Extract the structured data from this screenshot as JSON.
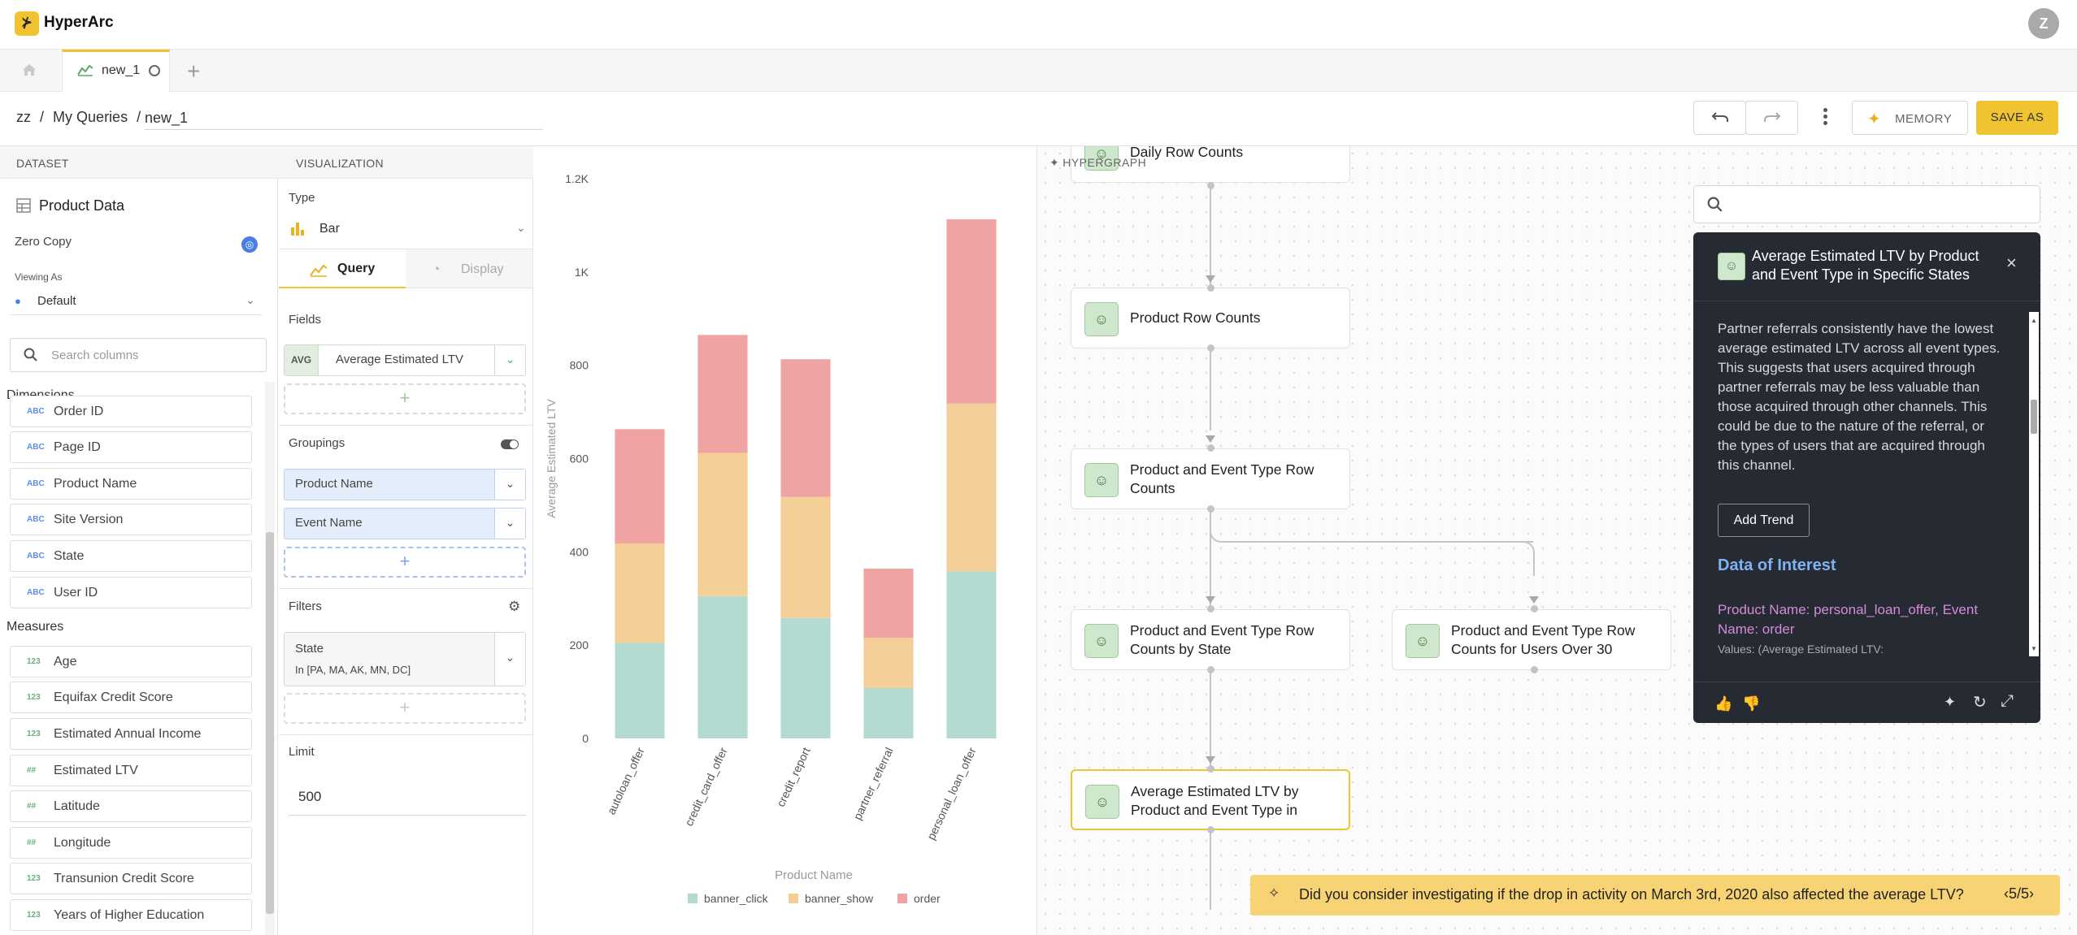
{
  "app": {
    "name": "HyperArc",
    "logo_glyph": "⊁",
    "user_initial": "Z"
  },
  "tabs": [
    {
      "label": "new_1"
    }
  ],
  "breadcrumb": {
    "root": "zz",
    "folder": "My Queries",
    "query_name": "new_1"
  },
  "toolbar": {
    "memory_label": "MEMORY",
    "save_as_label": "SAVE AS"
  },
  "dataset": {
    "header": "DATASET",
    "name": "Product Data",
    "zero_copy": "Zero Copy",
    "viewing_as_label": "Viewing As",
    "viewing_as_value": "Default",
    "search_placeholder": "Search columns",
    "dimensions_label": "Dimensions",
    "dimensions": [
      {
        "label": "Order ID",
        "type": "ABC"
      },
      {
        "label": "Page ID",
        "type": "ABC"
      },
      {
        "label": "Product Name",
        "type": "ABC"
      },
      {
        "label": "Site Version",
        "type": "ABC"
      },
      {
        "label": "State",
        "type": "ABC"
      },
      {
        "label": "User ID",
        "type": "ABC"
      }
    ],
    "measures_label": "Measures",
    "measures": [
      {
        "label": "Age",
        "type": "123"
      },
      {
        "label": "Equifax Credit Score",
        "type": "123"
      },
      {
        "label": "Estimated Annual Income",
        "type": "123"
      },
      {
        "label": "Estimated LTV",
        "type": "##"
      },
      {
        "label": "Latitude",
        "type": "##"
      },
      {
        "label": "Longitude",
        "type": "##"
      },
      {
        "label": "Transunion Credit Score",
        "type": "123"
      },
      {
        "label": "Years of Higher Education",
        "type": "123"
      }
    ]
  },
  "visualization": {
    "header": "VISUALIZATION",
    "type_label": "Type",
    "type_value": "Bar",
    "tab_query": "Query",
    "tab_display": "Display",
    "fields_label": "Fields",
    "field_agg": "AVG",
    "field_name": "Average Estimated LTV",
    "groupings_label": "Groupings",
    "groupings": [
      "Product Name",
      "Event Name"
    ],
    "filters_label": "Filters",
    "filter_name": "State",
    "filter_value": "In [PA, MA, AK, MN, DC]",
    "limit_label": "Limit",
    "limit_value": "500",
    "add_glyph": "+"
  },
  "chart_data": {
    "type": "bar",
    "stacked": true,
    "categories": [
      "autoloan_offer",
      "credit_card_offer",
      "credit_report",
      "partner_referral",
      "personal_loan_offer"
    ],
    "series": [
      {
        "name": "banner_click",
        "color": "#b3dbd1",
        "values": [
          205,
          305,
          258,
          108,
          358
        ]
      },
      {
        "name": "banner_show",
        "color": "#f5cf98",
        "values": [
          213,
          307,
          260,
          108,
          360
        ]
      },
      {
        "name": "order",
        "color": "#efa3a3",
        "values": [
          245,
          253,
          295,
          148,
          395
        ]
      }
    ],
    "xlabel": "Product Name",
    "ylabel": "Average Estimated LTV",
    "ylim": [
      0,
      1200
    ],
    "yticks": [
      {
        "value": 0,
        "label": "0"
      },
      {
        "value": 200,
        "label": "200"
      },
      {
        "value": 400,
        "label": "400"
      },
      {
        "value": 600,
        "label": "600"
      },
      {
        "value": 800,
        "label": "800"
      },
      {
        "value": 1000,
        "label": "1K"
      },
      {
        "value": 1200,
        "label": "1.2K"
      }
    ],
    "legend_position": "bottom"
  },
  "hypergraph": {
    "label": "HYPERGRAPH",
    "nodes": [
      {
        "label": "Daily Row Counts"
      },
      {
        "label": "Product Row Counts"
      },
      {
        "label": "Product and Event Type Row Counts"
      },
      {
        "label": "Product and Event Type Row Counts by State"
      },
      {
        "label": "Product and Event Type Row Counts for Users Over 30"
      },
      {
        "label": "Average Estimated LTV by Product and Event Type in"
      }
    ]
  },
  "insight_panel": {
    "search_placeholder": "",
    "title": "Average Estimated LTV by Product and Event Type in Specific States",
    "body": "Partner referrals consistently have the lowest average estimated LTV across all event types. This suggests that users acquired through partner referrals may be less valuable than those acquired through other channels. This could be due to the nature of the referral, or the types of users that are acquired through this channel.",
    "add_trend_label": "Add Trend",
    "data_of_interest_label": "Data of Interest",
    "interest_item": "Product Name: personal_loan_offer, Event Name: order",
    "interest_values": "Values: (Average Estimated LTV:"
  },
  "suggestion": {
    "text": "Did you consider investigating if the drop in activity on March 3rd, 2020 also affected the average LTV?",
    "pager": "5/5"
  }
}
